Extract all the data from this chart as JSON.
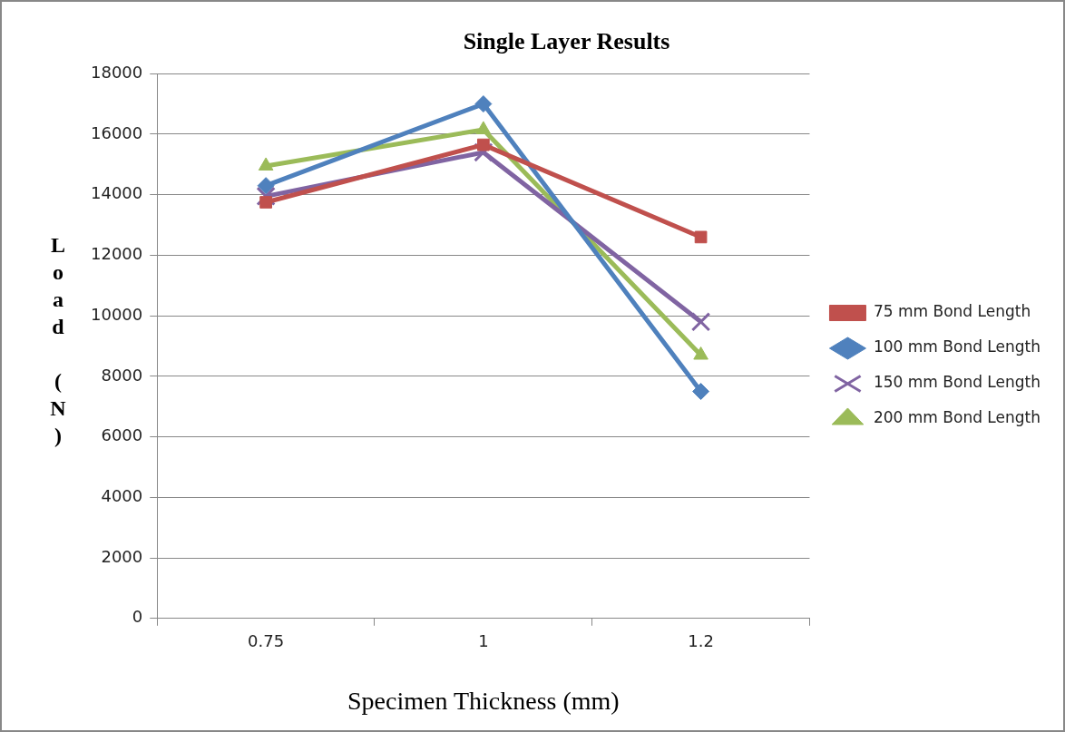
{
  "chart_data": {
    "type": "line",
    "title": "Single Layer Results",
    "xlabel": "Specimen Thickness (mm)",
    "ylabel": "Load (N)",
    "categories": [
      "0.75",
      "1",
      "1.2"
    ],
    "series": [
      {
        "name": "75 mm Bond Length",
        "color": "#c0504d",
        "marker": "square",
        "values": [
          13750,
          15650,
          12600
        ]
      },
      {
        "name": "100 mm Bond Length",
        "color": "#4f81bd",
        "marker": "diamond",
        "values": [
          14300,
          17000,
          7500
        ]
      },
      {
        "name": "150 mm Bond Length",
        "color": "#8064a2",
        "marker": "cross",
        "values": [
          13950,
          15400,
          9800
        ]
      },
      {
        "name": "200 mm Bond Length",
        "color": "#9bbb59",
        "marker": "triangle",
        "values": [
          14950,
          16150,
          8700
        ]
      }
    ],
    "ylim": [
      0,
      18000
    ],
    "yticks": [
      0,
      2000,
      4000,
      6000,
      8000,
      10000,
      12000,
      14000,
      16000,
      18000
    ],
    "grid": "y",
    "legend": "right",
    "line_style": "solid"
  }
}
